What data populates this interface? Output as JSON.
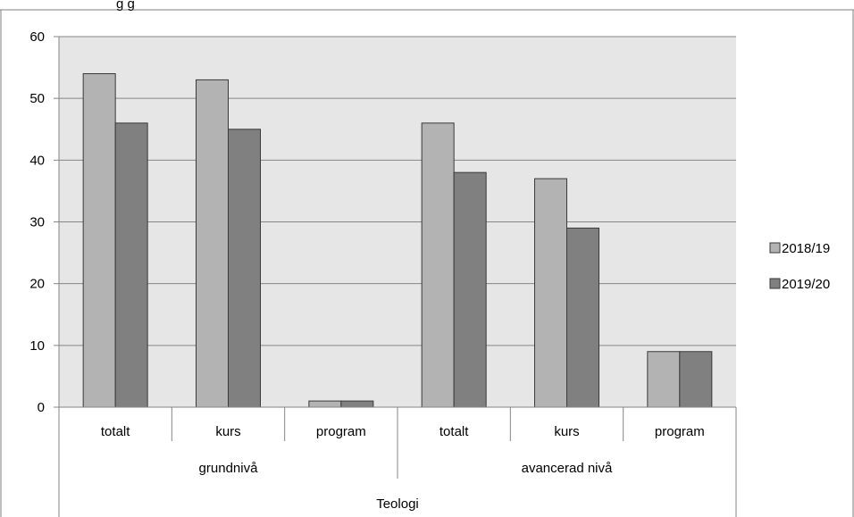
{
  "chart_data": {
    "type": "bar",
    "title_partial": "... g ... g",
    "categories": [
      "totalt",
      "kurs",
      "program",
      "totalt",
      "kurs",
      "program"
    ],
    "groups": [
      {
        "label": "grundnivå",
        "span": [
          0,
          2
        ]
      },
      {
        "label": "avancerad nivå",
        "span": [
          3,
          5
        ]
      }
    ],
    "supergroup": "Teologi",
    "series": [
      {
        "name": "2018/19",
        "values": [
          54,
          53,
          1,
          46,
          37,
          9
        ],
        "color": "#b3b3b3"
      },
      {
        "name": "2019/20",
        "values": [
          46,
          45,
          1,
          38,
          29,
          9
        ],
        "color": "#808080"
      }
    ],
    "yticks": [
      "0",
      "10",
      "20",
      "30",
      "40",
      "50",
      "60"
    ],
    "ylim": [
      0,
      60
    ],
    "grid": true,
    "legend_position": "right",
    "plot_background": "#e6e6e6"
  }
}
